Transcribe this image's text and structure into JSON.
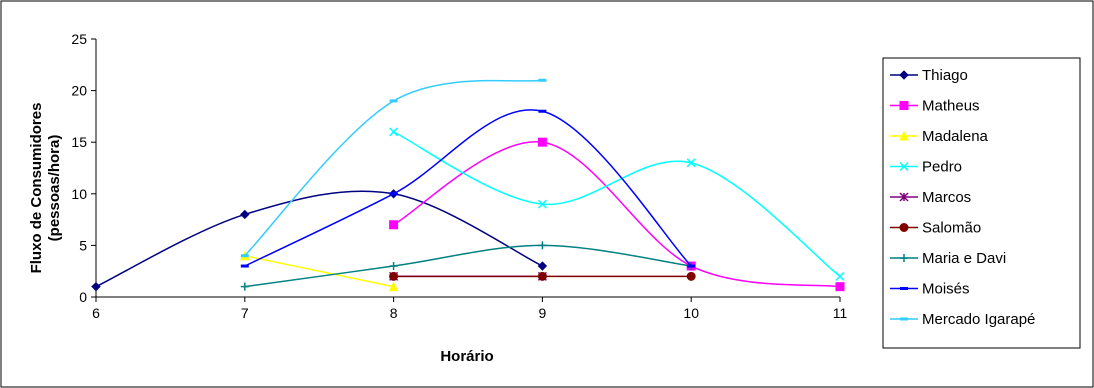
{
  "chart_data": {
    "type": "line",
    "smoothed": true,
    "xlabel": "Horário",
    "ylabel_line1": "Fluxo de Consumidores",
    "ylabel_line2": "(pessoas/hora)",
    "xlim": [
      6,
      11
    ],
    "ylim": [
      0,
      25
    ],
    "xticks": [
      6,
      7,
      8,
      9,
      10,
      11
    ],
    "yticks": [
      0,
      5,
      10,
      15,
      20,
      25
    ],
    "grid": false,
    "legend_position": "right",
    "series": [
      {
        "name": "Thiago",
        "color": "#000080",
        "marker": "diamond",
        "x": [
          6,
          7,
          8,
          9
        ],
        "y": [
          1,
          8,
          10,
          3
        ]
      },
      {
        "name": "Matheus",
        "color": "#FF00FF",
        "marker": "square",
        "x": [
          8,
          9,
          10,
          11
        ],
        "y": [
          7,
          15,
          3,
          1
        ]
      },
      {
        "name": "Madalena",
        "color": "#FFFF00",
        "marker": "triangle",
        "x": [
          7,
          8
        ],
        "y": [
          4,
          1
        ]
      },
      {
        "name": "Pedro",
        "color": "#00FFFF",
        "marker": "x",
        "x": [
          8,
          9,
          10,
          11
        ],
        "y": [
          16,
          9,
          13,
          2
        ]
      },
      {
        "name": "Marcos",
        "color": "#800080",
        "marker": "star",
        "x": [
          8,
          9
        ],
        "y": [
          2,
          2
        ]
      },
      {
        "name": "Salomão",
        "color": "#800000",
        "marker": "circle",
        "x": [
          8,
          9,
          10
        ],
        "y": [
          2,
          2,
          2
        ]
      },
      {
        "name": "Maria e Davi",
        "color": "#008080",
        "marker": "plus",
        "x": [
          7,
          8,
          9,
          10
        ],
        "y": [
          1,
          3,
          5,
          3
        ]
      },
      {
        "name": "Moisés",
        "color": "#0000FF",
        "marker": "dash",
        "x": [
          7,
          8,
          9,
          10
        ],
        "y": [
          3,
          10,
          18,
          3
        ]
      },
      {
        "name": "Mercado Igarapé",
        "color": "#33CCFF",
        "marker": "dash",
        "x": [
          7,
          8,
          9
        ],
        "y": [
          4,
          19,
          21
        ]
      }
    ]
  }
}
